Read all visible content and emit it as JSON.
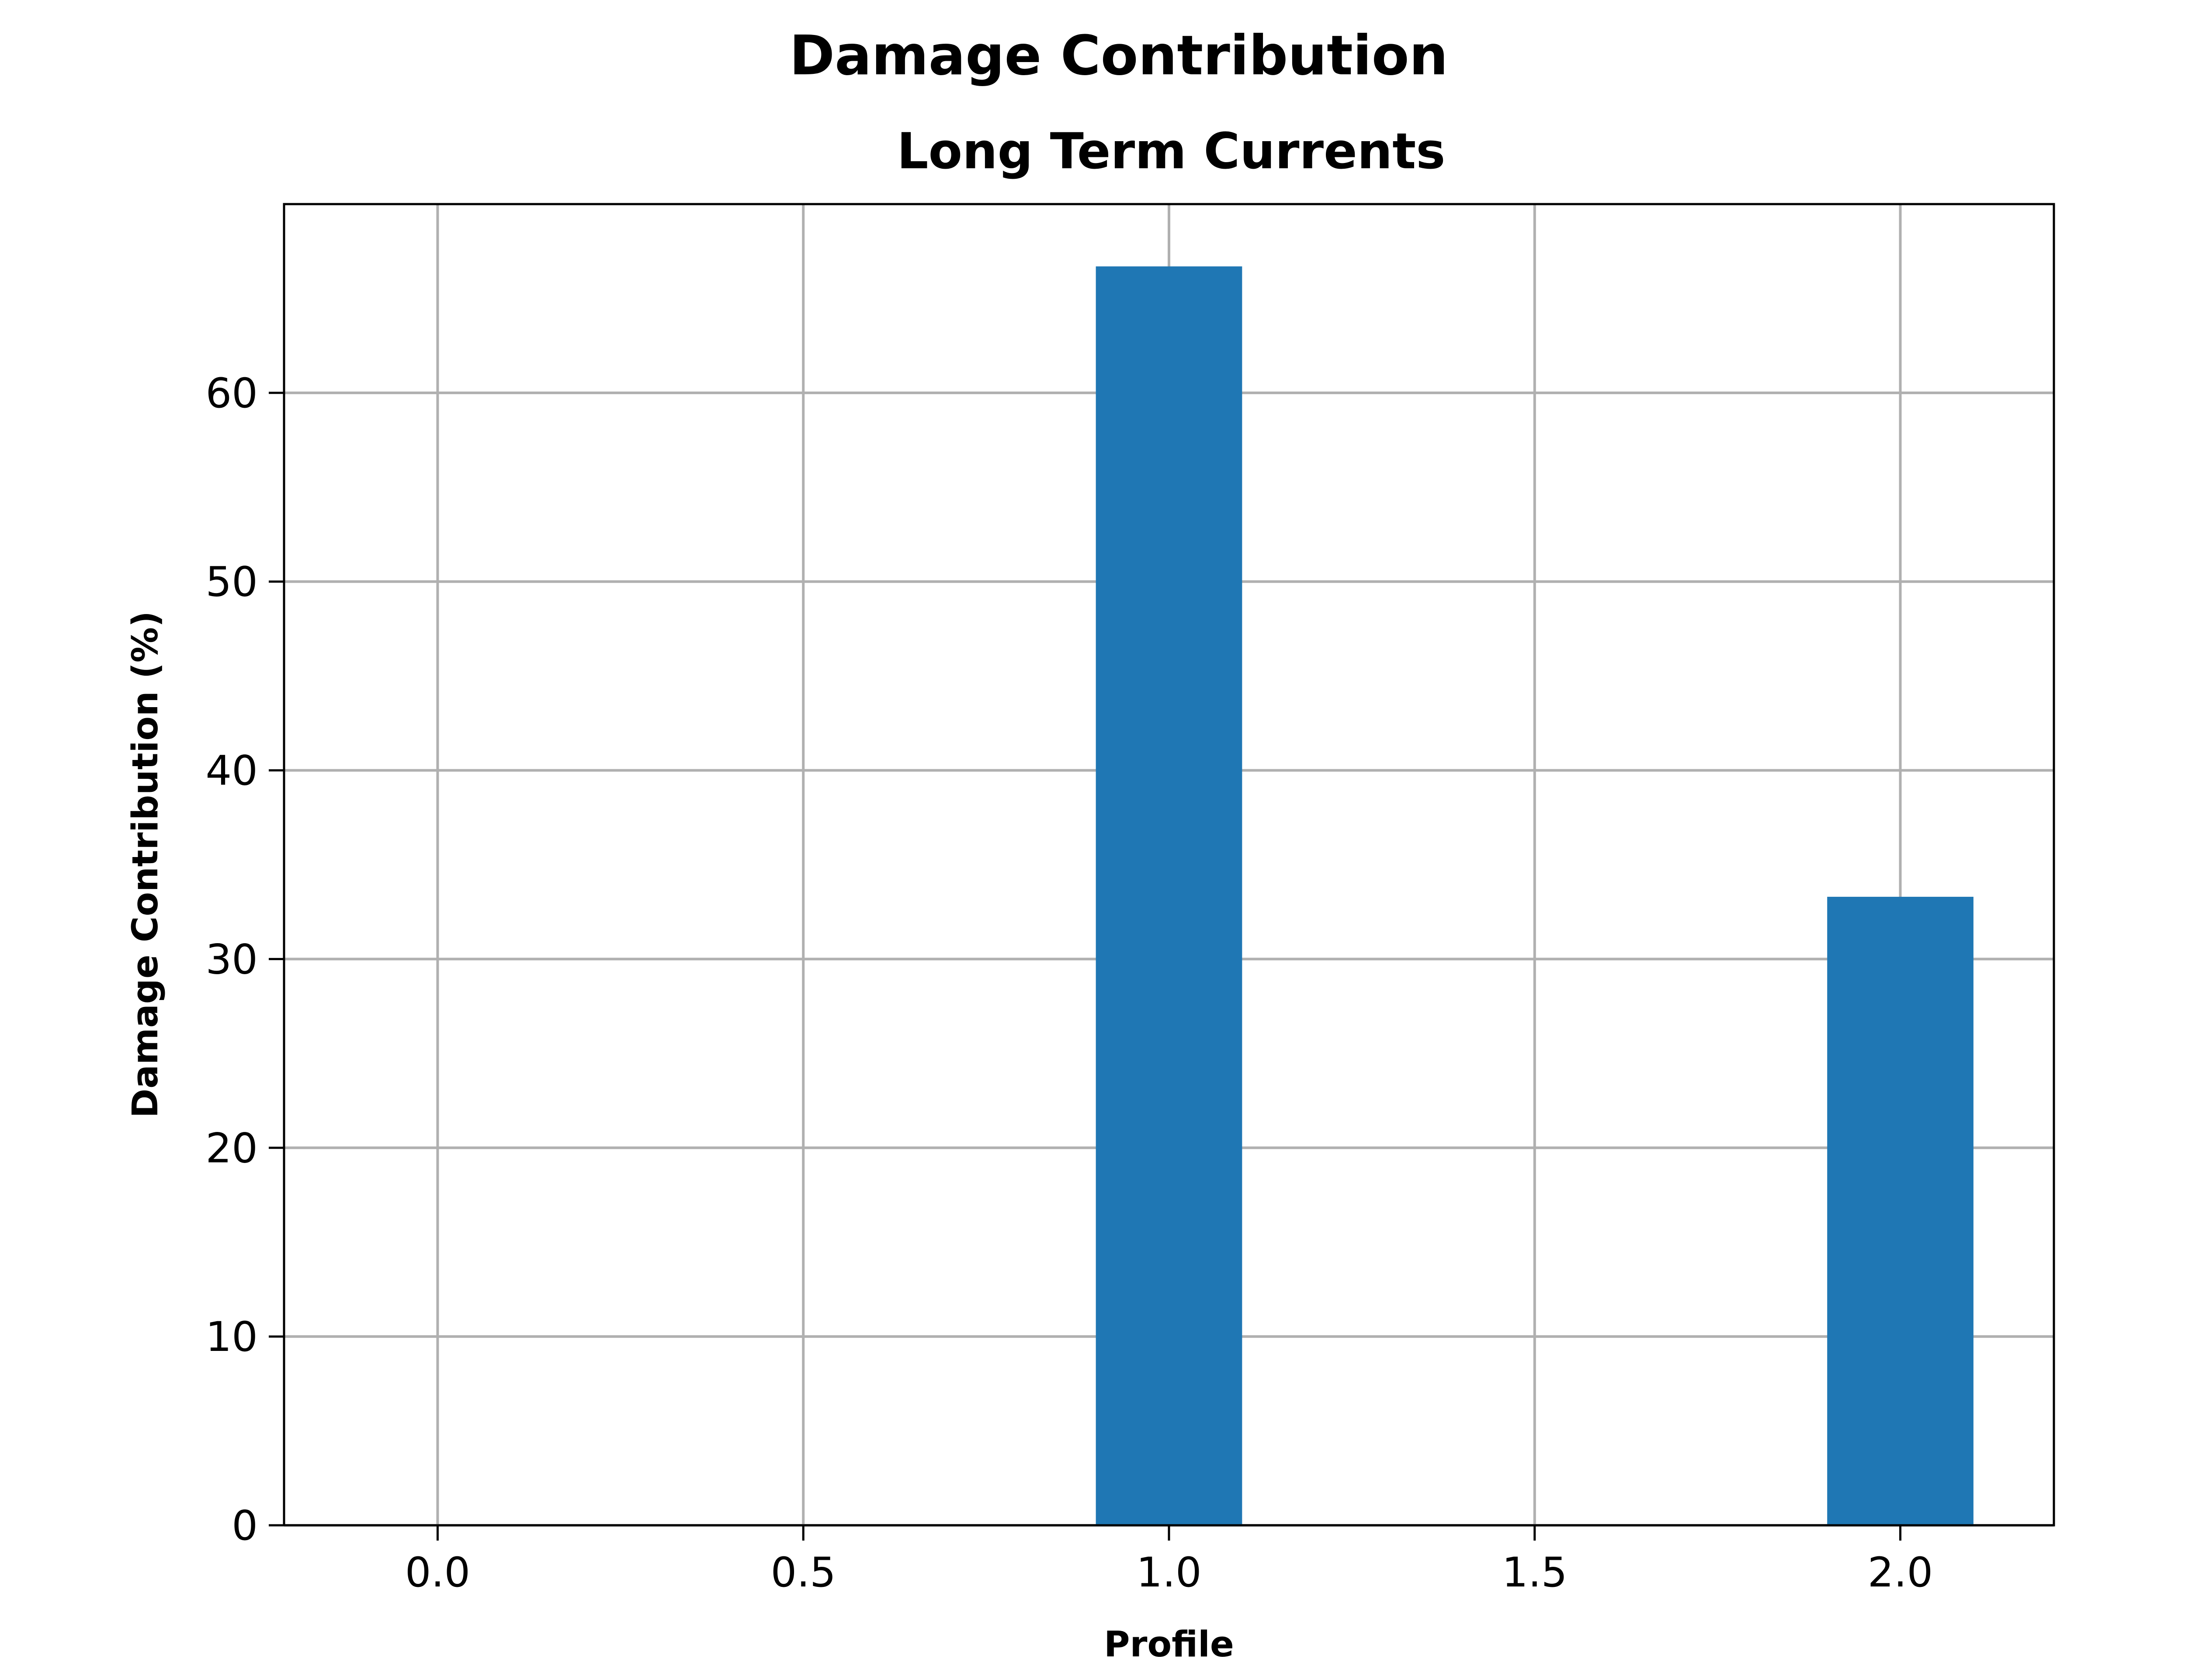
{
  "chart_data": {
    "type": "bar",
    "suptitle": "Damage Contribution",
    "title": "Long Term Currents",
    "xlabel": "Profile",
    "ylabel": "Damage Contribution (%)",
    "x": [
      1.0,
      2.0
    ],
    "values": [
      66.7,
      33.3
    ],
    "bar_width": 0.2,
    "xlim": [
      -0.21,
      2.21
    ],
    "ylim": [
      0,
      70
    ],
    "xticks": [
      0.0,
      0.5,
      1.0,
      1.5,
      2.0
    ],
    "xtick_labels": [
      "0.0",
      "0.5",
      "1.0",
      "1.5",
      "2.0"
    ],
    "yticks": [
      0,
      10,
      20,
      30,
      40,
      50,
      60
    ],
    "ytick_labels": [
      "0",
      "10",
      "20",
      "30",
      "40",
      "50",
      "60"
    ],
    "grid": true,
    "bar_color": "#1f77b4",
    "grid_color": "#b0b0b0"
  }
}
